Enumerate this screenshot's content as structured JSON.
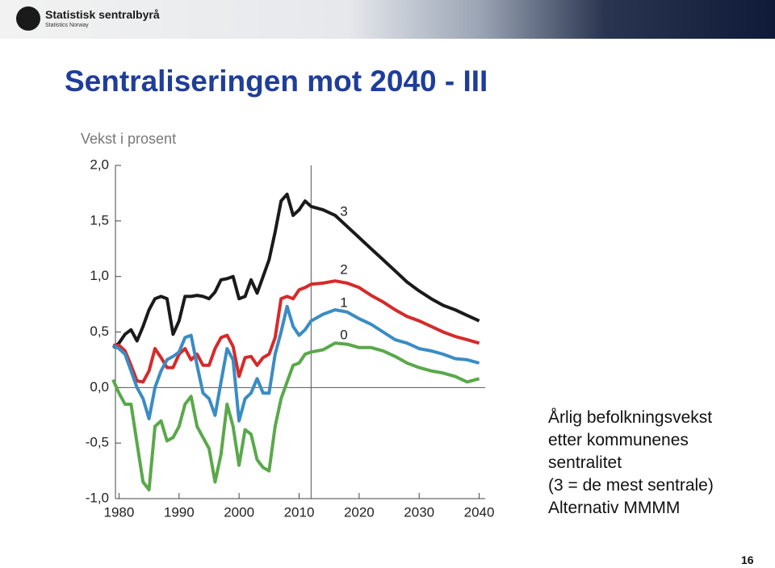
{
  "header": {
    "logo_title": "Statistisk sentralbyrå",
    "logo_subtitle": "Statistics Norway"
  },
  "slide": {
    "title": "Sentraliseringen mot 2040 - III",
    "subtitle": "Vekst i prosent",
    "note_lines": [
      "Årlig befolkningsvekst",
      "etter kommunenes",
      "sentralitet",
      "(3 = de mest sentrale)",
      "Alternativ MMMM"
    ],
    "page_number": "16"
  },
  "chart_data": {
    "type": "line",
    "x": [
      1979,
      1980,
      1981,
      1982,
      1983,
      1984,
      1985,
      1986,
      1987,
      1988,
      1989,
      1990,
      1991,
      1992,
      1993,
      1994,
      1995,
      1996,
      1997,
      1998,
      1999,
      2000,
      2001,
      2002,
      2003,
      2004,
      2005,
      2006,
      2007,
      2008,
      2009,
      2010,
      2011,
      2012,
      2014,
      2016,
      2018,
      2020,
      2022,
      2024,
      2026,
      2028,
      2030,
      2032,
      2034,
      2036,
      2038,
      2040
    ],
    "series": [
      {
        "name": "3",
        "color": "#1a1a1a",
        "values": [
          0.36,
          0.4,
          0.48,
          0.52,
          0.42,
          0.55,
          0.7,
          0.8,
          0.82,
          0.8,
          0.48,
          0.6,
          0.82,
          0.82,
          0.83,
          0.82,
          0.8,
          0.86,
          0.97,
          0.98,
          1.0,
          0.8,
          0.82,
          0.97,
          0.85,
          1.0,
          1.15,
          1.4,
          1.68,
          1.74,
          1.55,
          1.6,
          1.68,
          1.63,
          1.6,
          1.55,
          1.45,
          1.35,
          1.25,
          1.15,
          1.05,
          0.95,
          0.87,
          0.8,
          0.74,
          0.7,
          0.65,
          0.6
        ]
      },
      {
        "name": "2",
        "color": "#d62a2a",
        "values": [
          0.38,
          0.38,
          0.33,
          0.2,
          0.06,
          0.05,
          0.15,
          0.35,
          0.27,
          0.18,
          0.18,
          0.3,
          0.35,
          0.25,
          0.3,
          0.2,
          0.2,
          0.35,
          0.45,
          0.47,
          0.37,
          0.1,
          0.27,
          0.28,
          0.2,
          0.27,
          0.3,
          0.45,
          0.8,
          0.82,
          0.8,
          0.88,
          0.9,
          0.93,
          0.94,
          0.96,
          0.94,
          0.9,
          0.83,
          0.77,
          0.7,
          0.64,
          0.6,
          0.55,
          0.5,
          0.46,
          0.43,
          0.4
        ]
      },
      {
        "name": "1",
        "color": "#3a8cc4",
        "values": [
          0.38,
          0.35,
          0.3,
          0.15,
          0.0,
          -0.1,
          -0.28,
          0.0,
          0.15,
          0.25,
          0.28,
          0.32,
          0.45,
          0.47,
          0.2,
          -0.05,
          -0.1,
          -0.25,
          0.05,
          0.35,
          0.25,
          -0.3,
          -0.1,
          -0.05,
          0.08,
          -0.05,
          -0.05,
          0.3,
          0.5,
          0.73,
          0.55,
          0.47,
          0.52,
          0.6,
          0.66,
          0.7,
          0.68,
          0.62,
          0.57,
          0.5,
          0.43,
          0.4,
          0.35,
          0.33,
          0.3,
          0.26,
          0.25,
          0.22
        ]
      },
      {
        "name": "0",
        "color": "#5aa84a",
        "values": [
          0.07,
          -0.05,
          -0.15,
          -0.15,
          -0.5,
          -0.85,
          -0.92,
          -0.35,
          -0.3,
          -0.48,
          -0.45,
          -0.35,
          -0.15,
          -0.08,
          -0.35,
          -0.45,
          -0.55,
          -0.85,
          -0.6,
          -0.15,
          -0.35,
          -0.7,
          -0.38,
          -0.42,
          -0.65,
          -0.72,
          -0.75,
          -0.35,
          -0.1,
          0.05,
          0.2,
          0.22,
          0.3,
          0.32,
          0.34,
          0.4,
          0.39,
          0.36,
          0.36,
          0.33,
          0.28,
          0.22,
          0.18,
          0.15,
          0.13,
          0.1,
          0.05,
          0.08
        ]
      }
    ],
    "xlim": [
      1979,
      2041
    ],
    "xticks": [
      1980,
      1990,
      2000,
      2010,
      2020,
      2030,
      2040
    ],
    "ylim": [
      -1,
      2
    ],
    "yticks": [
      {
        "value": -1,
        "label": "-1,0"
      },
      {
        "value": -0.5,
        "label": "-0,5"
      },
      {
        "value": 0,
        "label": "0,0"
      },
      {
        "value": 0.5,
        "label": "0,5"
      },
      {
        "value": 1,
        "label": "1,0"
      },
      {
        "value": 1.5,
        "label": "1,5"
      },
      {
        "value": 2,
        "label": "2,0"
      }
    ],
    "forecast_start": 2012
  }
}
